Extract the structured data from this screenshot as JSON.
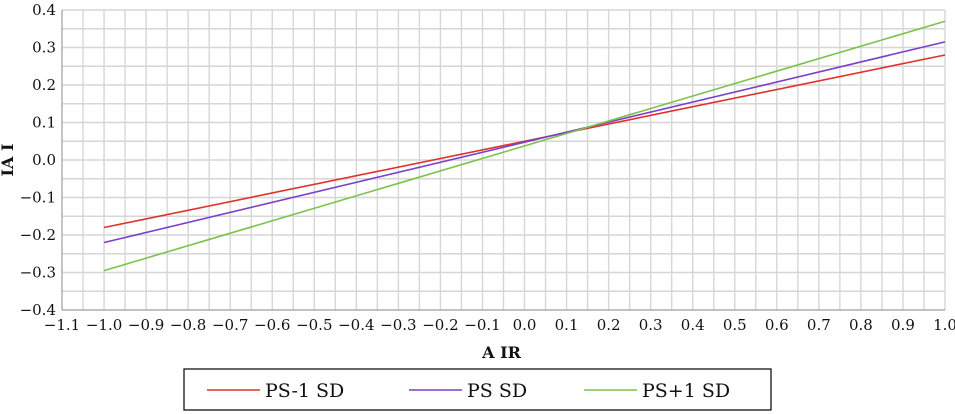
{
  "chart_data": {
    "type": "line",
    "title": "",
    "xlabel": "A IR",
    "ylabel": "IA I",
    "xlim": [
      -1.1,
      1.0
    ],
    "ylim": [
      -0.4,
      0.4
    ],
    "x_ticks": [
      -1.1,
      -1.0,
      -0.9,
      -0.8,
      -0.7,
      -0.6,
      -0.5,
      -0.4,
      -0.3,
      -0.2,
      -0.1,
      0.0,
      0.1,
      0.2,
      0.3,
      0.4,
      0.5,
      0.6,
      0.7,
      0.8,
      0.9,
      1.0
    ],
    "x_tick_labels": [
      "−1.1",
      "−1.0",
      "−0.9",
      "−0.8",
      "−0.7",
      "−0.6",
      "−0.5",
      "−0.4",
      "−0.3",
      "−0.2",
      "−0.1",
      "0.0",
      "0.1",
      "0.2",
      "0.3",
      "0.4",
      "0.5",
      "0.6",
      "0.7",
      "0.8",
      "0.9",
      "1.0"
    ],
    "y_ticks": [
      -0.4,
      -0.3,
      -0.2,
      -0.1,
      0.0,
      0.1,
      0.2,
      0.3,
      0.4
    ],
    "y_tick_labels": [
      "−0.4",
      "−0.3",
      "−0.2",
      "−0.1",
      "0.0",
      "0.1",
      "0.2",
      "0.3",
      "0.4"
    ],
    "grid": true,
    "legend_position": "bottom",
    "series": [
      {
        "name": "PS-1 SD",
        "color": "#e0302a",
        "x": [
          -1.0,
          1.0
        ],
        "y": [
          -0.18,
          0.28
        ]
      },
      {
        "name": "PS  SD",
        "color": "#7b3fc9",
        "x": [
          -1.0,
          1.0
        ],
        "y": [
          -0.22,
          0.315
        ]
      },
      {
        "name": "PS+1 SD",
        "color": "#7cc24a",
        "x": [
          -1.0,
          1.0
        ],
        "y": [
          -0.295,
          0.37
        ]
      }
    ]
  }
}
